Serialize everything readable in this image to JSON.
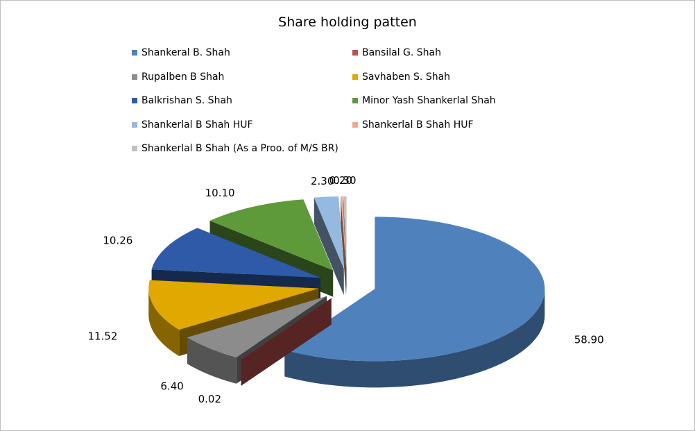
{
  "chart_data": {
    "type": "pie",
    "title": "Share holding patten",
    "legend_position": "top",
    "slices": [
      {
        "label": "Shankeral B. Shah",
        "value": 58.9,
        "value_label": "58.90",
        "color": "#4f81bd"
      },
      {
        "label": "Bansilal G. Shah",
        "value": 0.02,
        "value_label": "0.02",
        "color": "#c0504d"
      },
      {
        "label": "Rupalben B Shah",
        "value": 6.4,
        "value_label": "6.40",
        "color": "#8c8c8c"
      },
      {
        "label": "Savhaben S. Shah",
        "value": 11.52,
        "value_label": "11.52",
        "color": "#e0a800"
      },
      {
        "label": "Balkrishan S. Shah",
        "value": 10.26,
        "value_label": "10.26",
        "color": "#2e5aa8"
      },
      {
        "label": "Minor Yash Shankerlal Shah",
        "value": 10.1,
        "value_label": "10.10",
        "color": "#5f9a3a"
      },
      {
        "label": "Shankerlal B Shah HUF",
        "value": 2.3,
        "value_label": "2.30",
        "color": "#95b9e0"
      },
      {
        "label": "Shankerlal B Shah HUF",
        "value": 0.2,
        "value_label": "0.20",
        "color": "#f0a890"
      },
      {
        "label": "Shankerlal B Shah (As a Proo. of M/S BR)",
        "value": 0.3,
        "value_label": "0.30",
        "color": "#c0c0c0"
      }
    ]
  }
}
